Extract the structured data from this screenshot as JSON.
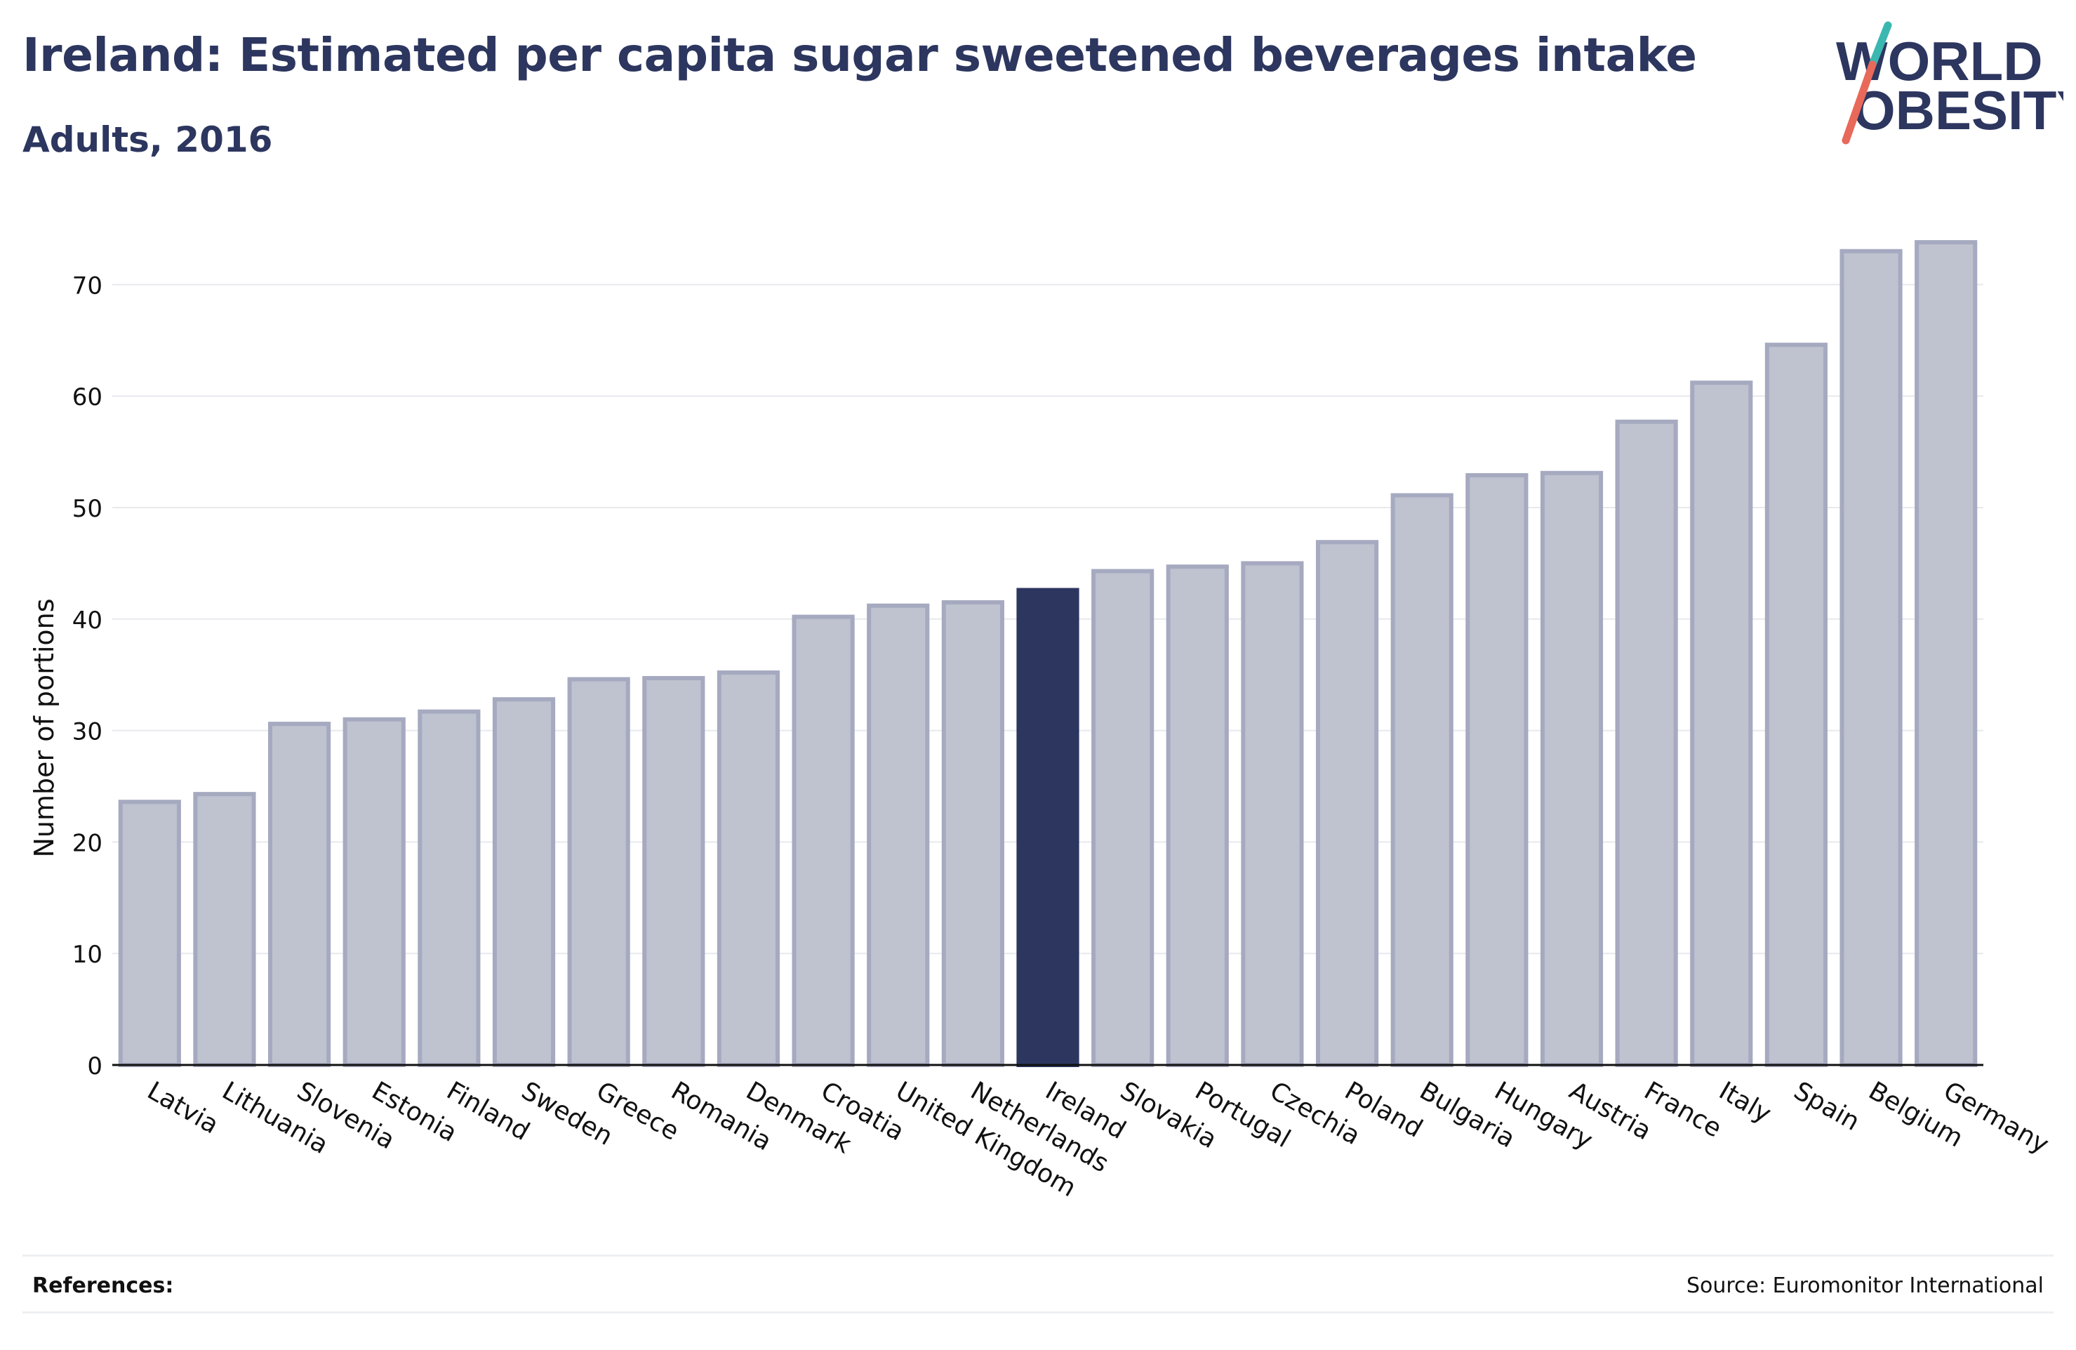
{
  "header": {
    "title": "Ireland: Estimated per capita sugar sweetened beverages intake",
    "subtitle": "Adults, 2016"
  },
  "logo": {
    "line1": "WORLD",
    "line2": "OBESITY",
    "color_text": "#2c365f",
    "color_slash_top": "#3ab7b0",
    "color_slash_bottom": "#e8685a"
  },
  "footer": {
    "references_label": "References:",
    "source": "Source: Euromonitor International"
  },
  "colors": {
    "bar_default": "#bfc2cf",
    "bar_default_border": "#a6aac0",
    "bar_highlight": "#2c365f",
    "grid": "#e8e9ed",
    "axis": "#111111"
  },
  "chart_data": {
    "type": "bar",
    "ylabel": "Number of portions",
    "ylim": [
      0,
      75
    ],
    "yticks": [
      0,
      10,
      20,
      30,
      40,
      50,
      60,
      70
    ],
    "grid": true,
    "highlight": "Ireland",
    "categories": [
      "Latvia",
      "Lithuania",
      "Slovenia",
      "Estonia",
      "Finland",
      "Sweden",
      "Greece",
      "Romania",
      "Denmark",
      "Croatia",
      "United Kingdom",
      "Netherlands",
      "Ireland",
      "Slovakia",
      "Portugal",
      "Czechia",
      "Poland",
      "Bulgaria",
      "Hungary",
      "Austria",
      "France",
      "Italy",
      "Spain",
      "Belgium",
      "Germany"
    ],
    "values": [
      23.6,
      24.3,
      30.6,
      31.0,
      31.7,
      32.8,
      34.6,
      34.7,
      35.2,
      40.2,
      41.2,
      41.5,
      42.6,
      44.3,
      44.7,
      45.0,
      46.9,
      51.1,
      52.9,
      53.1,
      57.7,
      61.2,
      64.6,
      73.0,
      73.8
    ]
  }
}
